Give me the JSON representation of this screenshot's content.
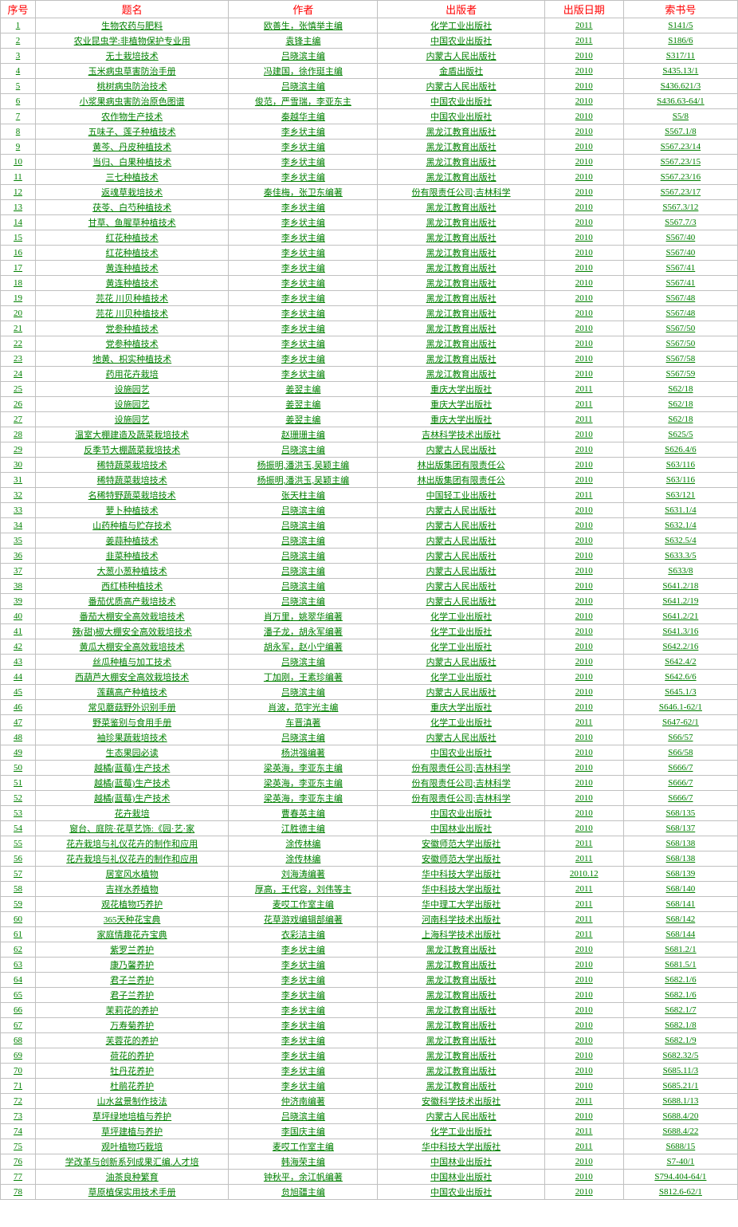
{
  "headers": {
    "seq": "序号",
    "title": "题名",
    "author": "作者",
    "publisher": "出版者",
    "date": "出版日期",
    "code": "索书号"
  },
  "colors": {
    "header_text": "#ff0000",
    "cell_text": "#008000",
    "border": "#c0c0c0",
    "background": "#ffffff"
  },
  "fonts": {
    "header_size": 13,
    "cell_size": 11,
    "family": "SimSun"
  },
  "column_widths": {
    "seq": 40,
    "title": 220,
    "author": 170,
    "publisher": 190,
    "date": 90,
    "code": 130
  },
  "rows": [
    {
      "seq": "1",
      "title": "生物农药与肥料",
      "author": "欧善生，张慎举主编",
      "publisher": "化学工业出版社",
      "date": "2011",
      "code": "S141/5"
    },
    {
      "seq": "2",
      "title": "农业昆虫学:非植物保护专业用",
      "author": "袁锋主编",
      "publisher": "中国农业出版社",
      "date": "2011",
      "code": "S186/6"
    },
    {
      "seq": "3",
      "title": "无土栽培技术",
      "author": "吕晓滨主编",
      "publisher": "内蒙古人民出版社",
      "date": "2010",
      "code": "S317/11"
    },
    {
      "seq": "4",
      "title": "玉米病虫草害防治手册",
      "author": "冯建国，徐作珽主编",
      "publisher": "金盾出版社",
      "date": "2010",
      "code": "S435.13/1"
    },
    {
      "seq": "5",
      "title": "桃树病虫防治技术",
      "author": "吕晓滨主编",
      "publisher": "内蒙古人民出版社",
      "date": "2010",
      "code": "S436.621/3"
    },
    {
      "seq": "6",
      "title": "小浆果病虫害防治原色图谱",
      "author": "俊范，严雪瑞，李亚东主",
      "publisher": "中国农业出版社",
      "date": "2010",
      "code": "S436.63-64/1"
    },
    {
      "seq": "7",
      "title": "农作物生产技术",
      "author": "秦越华主编",
      "publisher": "中国农业出版社",
      "date": "2010",
      "code": "S5/8"
    },
    {
      "seq": "8",
      "title": "五味子、莲子种植技术",
      "author": "李乡状主编",
      "publisher": "黑龙江教育出版社",
      "date": "2010",
      "code": "S567.1/8"
    },
    {
      "seq": "9",
      "title": "黄芩、丹皮种植技术",
      "author": "李乡状主编",
      "publisher": "黑龙江教育出版社",
      "date": "2010",
      "code": "S567.23/14"
    },
    {
      "seq": "10",
      "title": "当归、白果种植技术",
      "author": "李乡状主编",
      "publisher": "黑龙江教育出版社",
      "date": "2010",
      "code": "S567.23/15"
    },
    {
      "seq": "11",
      "title": "三七种植技术",
      "author": "李乡状主编",
      "publisher": "黑龙江教育出版社",
      "date": "2010",
      "code": "S567.23/16"
    },
    {
      "seq": "12",
      "title": "返魂草栽培技术",
      "author": "秦佳梅，张卫东编著",
      "publisher": "份有限责任公司;吉林科学",
      "date": "2010",
      "code": "S567.23/17"
    },
    {
      "seq": "13",
      "title": "茯苓、白芍种植技术",
      "author": "李乡状主编",
      "publisher": "黑龙江教育出版社",
      "date": "2010",
      "code": "S567.3/12"
    },
    {
      "seq": "14",
      "title": "甘草、鱼腥草种植技术",
      "author": "李乡状主编",
      "publisher": "黑龙江教育出版社",
      "date": "2010",
      "code": "S567.7/3"
    },
    {
      "seq": "15",
      "title": "红花种植技术",
      "author": "李乡状主编",
      "publisher": "黑龙江教育出版社",
      "date": "2010",
      "code": "S567/40"
    },
    {
      "seq": "16",
      "title": "红花种植技术",
      "author": "李乡状主编",
      "publisher": "黑龙江教育出版社",
      "date": "2010",
      "code": "S567/40"
    },
    {
      "seq": "17",
      "title": "黄连种植技术",
      "author": "李乡状主编",
      "publisher": "黑龙江教育出版社",
      "date": "2010",
      "code": "S567/41"
    },
    {
      "seq": "18",
      "title": "黄连种植技术",
      "author": "李乡状主编",
      "publisher": "黑龙江教育出版社",
      "date": "2010",
      "code": "S567/41"
    },
    {
      "seq": "19",
      "title": "芫花 川贝种植技术",
      "author": "李乡状主编",
      "publisher": "黑龙江教育出版社",
      "date": "2010",
      "code": "S567/48"
    },
    {
      "seq": "20",
      "title": "芫花 川贝种植技术",
      "author": "李乡状主编",
      "publisher": "黑龙江教育出版社",
      "date": "2010",
      "code": "S567/48"
    },
    {
      "seq": "21",
      "title": "党参种植技术",
      "author": "李乡状主编",
      "publisher": "黑龙江教育出版社",
      "date": "2010",
      "code": "S567/50"
    },
    {
      "seq": "22",
      "title": "党参种植技术",
      "author": "李乡状主编",
      "publisher": "黑龙江教育出版社",
      "date": "2010",
      "code": "S567/50"
    },
    {
      "seq": "23",
      "title": "地黄、枳实种植技术",
      "author": "李乡状主编",
      "publisher": "黑龙江教育出版社",
      "date": "2010",
      "code": "S567/58"
    },
    {
      "seq": "24",
      "title": "药用花卉栽培",
      "author": "李乡状主编",
      "publisher": "黑龙江教育出版社",
      "date": "2010",
      "code": "S567/59"
    },
    {
      "seq": "25",
      "title": "设施园艺",
      "author": "姜翌主编",
      "publisher": "重庆大学出版社",
      "date": "2011",
      "code": "S62/18"
    },
    {
      "seq": "26",
      "title": "设施园艺",
      "author": "姜翌主编",
      "publisher": "重庆大学出版社",
      "date": "2011",
      "code": "S62/18"
    },
    {
      "seq": "27",
      "title": "设施园艺",
      "author": "姜翌主编",
      "publisher": "重庆大学出版社",
      "date": "2011",
      "code": "S62/18"
    },
    {
      "seq": "28",
      "title": "温室大棚建造及蔬菜栽培技术",
      "author": "赵珊珊主编",
      "publisher": "吉林科学技术出版社",
      "date": "2010",
      "code": "S625/5"
    },
    {
      "seq": "29",
      "title": "反季节大棚蔬菜栽培技术",
      "author": "吕晓滨主编",
      "publisher": "内蒙古人民出版社",
      "date": "2010",
      "code": "S626.4/6"
    },
    {
      "seq": "30",
      "title": "稀特蔬菜栽培技术",
      "author": "杨振明,潘洪玉,吴颖主编",
      "publisher": "林出版集团有限责任公",
      "date": "2010",
      "code": "S63/116"
    },
    {
      "seq": "31",
      "title": "稀特蔬菜栽培技术",
      "author": "杨振明,潘洪玉,吴颖主编",
      "publisher": "林出版集团有限责任公",
      "date": "2010",
      "code": "S63/116"
    },
    {
      "seq": "32",
      "title": "名稀特野蔬菜栽培技术",
      "author": "张天柱主编",
      "publisher": "中国轻工业出版社",
      "date": "2011",
      "code": "S63/121"
    },
    {
      "seq": "33",
      "title": "萝卜种植技术",
      "author": "吕晓滨主编",
      "publisher": "内蒙古人民出版社",
      "date": "2010",
      "code": "S631.1/4"
    },
    {
      "seq": "34",
      "title": "山药种植与贮存技术",
      "author": "吕晓滨主编",
      "publisher": "内蒙古人民出版社",
      "date": "2010",
      "code": "S632.1/4"
    },
    {
      "seq": "35",
      "title": "姜蒜种植技术",
      "author": "吕晓滨主编",
      "publisher": "内蒙古人民出版社",
      "date": "2010",
      "code": "S632.5/4"
    },
    {
      "seq": "36",
      "title": "韭菜种植技术",
      "author": "吕晓滨主编",
      "publisher": "内蒙古人民出版社",
      "date": "2010",
      "code": "S633.3/5"
    },
    {
      "seq": "37",
      "title": "大葱小葱种植技术",
      "author": "吕晓滨主编",
      "publisher": "内蒙古人民出版社",
      "date": "2010",
      "code": "S633/8"
    },
    {
      "seq": "38",
      "title": "西红柿种植技术",
      "author": "吕晓滨主编",
      "publisher": "内蒙古人民出版社",
      "date": "2010",
      "code": "S641.2/18"
    },
    {
      "seq": "39",
      "title": "番茄优质高产栽培技术",
      "author": "吕晓滨主编",
      "publisher": "内蒙古人民出版社",
      "date": "2010",
      "code": "S641.2/19"
    },
    {
      "seq": "40",
      "title": "番茄大棚安全高效栽培技术",
      "author": "肖万里，姚翠华编著",
      "publisher": "化学工业出版社",
      "date": "2010",
      "code": "S641.2/21"
    },
    {
      "seq": "41",
      "title": "辣(甜)椒大棚安全高效栽培技术",
      "author": "潘子龙，胡永军编著",
      "publisher": "化学工业出版社",
      "date": "2010",
      "code": "S641.3/16"
    },
    {
      "seq": "42",
      "title": "黄瓜大棚安全高效栽培技术",
      "author": "胡永军，赵小宁编著",
      "publisher": "化学工业出版社",
      "date": "2010",
      "code": "S642.2/16"
    },
    {
      "seq": "43",
      "title": "丝瓜种植与加工技术",
      "author": "吕晓滨主编",
      "publisher": "内蒙古人民出版社",
      "date": "2010",
      "code": "S642.4/2"
    },
    {
      "seq": "44",
      "title": "西葫芦大棚安全高效栽培技术",
      "author": "丁加刚，王素珍编著",
      "publisher": "化学工业出版社",
      "date": "2010",
      "code": "S642.6/6"
    },
    {
      "seq": "45",
      "title": "莲藕高产种植技术",
      "author": "吕晓滨主编",
      "publisher": "内蒙古人民出版社",
      "date": "2010",
      "code": "S645.1/3"
    },
    {
      "seq": "46",
      "title": "常见蘑菇野外识别手册",
      "author": "肖波，范宇光主编",
      "publisher": "重庆大学出版社",
      "date": "2010",
      "code": "S646.1-62/1"
    },
    {
      "seq": "47",
      "title": "野菜鉴别与食用手册",
      "author": "车晋滇著",
      "publisher": "化学工业出版社",
      "date": "2011",
      "code": "S647-62/1"
    },
    {
      "seq": "48",
      "title": "袖珍果蔬栽培技术",
      "author": "吕晓滨主编",
      "publisher": "内蒙古人民出版社",
      "date": "2010",
      "code": "S66/57"
    },
    {
      "seq": "49",
      "title": "生态果园必读",
      "author": "杨洪强编著",
      "publisher": "中国农业出版社",
      "date": "2010",
      "code": "S66/58"
    },
    {
      "seq": "50",
      "title": "越橘(蓝莓)生产技术",
      "author": "梁英海，李亚东主编",
      "publisher": "份有限责任公司;吉林科学",
      "date": "2010",
      "code": "S666/7"
    },
    {
      "seq": "51",
      "title": "越橘(蓝莓)生产技术",
      "author": "梁英海，李亚东主编",
      "publisher": "份有限责任公司;吉林科学",
      "date": "2010",
      "code": "S666/7"
    },
    {
      "seq": "52",
      "title": "越橘(蓝莓)生产技术",
      "author": "梁英海，李亚东主编",
      "publisher": "份有限责任公司;吉林科学",
      "date": "2010",
      "code": "S666/7"
    },
    {
      "seq": "53",
      "title": "花卉栽培",
      "author": "曹春英主编",
      "publisher": "中国农业出版社",
      "date": "2010",
      "code": "S68/135"
    },
    {
      "seq": "54",
      "title": "窗台、庭院·花草艺饰:《园·艺·家",
      "author": "江胜德主编",
      "publisher": "中国林业出版社",
      "date": "2010",
      "code": "S68/137"
    },
    {
      "seq": "55",
      "title": "花卉栽培与礼仪花卉的制作和应用",
      "author": "涂传林编",
      "publisher": "安徽师范大学出版社",
      "date": "2011",
      "code": "S68/138"
    },
    {
      "seq": "56",
      "title": "花卉栽培与礼仪花卉的制作和应用",
      "author": "涂传林编",
      "publisher": "安徽师范大学出版社",
      "date": "2011",
      "code": "S68/138"
    },
    {
      "seq": "57",
      "title": "居室风水植物",
      "author": "刘海涛编著",
      "publisher": "华中科技大学出版社",
      "date": "2010.12",
      "code": "S68/139"
    },
    {
      "seq": "58",
      "title": "吉祥水养植物",
      "author": "厚高，王代容，刘伟等主",
      "publisher": "华中科技大学出版社",
      "date": "2011",
      "code": "S68/140"
    },
    {
      "seq": "59",
      "title": "观花植物巧养护",
      "author": "麦哎工作室主编",
      "publisher": "华中理工大学出版社",
      "date": "2011",
      "code": "S68/141"
    },
    {
      "seq": "60",
      "title": "365天种花宝典",
      "author": "花草游戏编辑部编著",
      "publisher": "河南科学技术出版社",
      "date": "2011",
      "code": "S68/142"
    },
    {
      "seq": "61",
      "title": "家庭情趣花卉宝典",
      "author": "衣彩洁主编",
      "publisher": "上海科学技术出版社",
      "date": "2011",
      "code": "S68/144"
    },
    {
      "seq": "62",
      "title": "紫罗兰养护",
      "author": "李乡状主编",
      "publisher": "黑龙江教育出版社",
      "date": "2010",
      "code": "S681.2/1"
    },
    {
      "seq": "63",
      "title": "康乃馨养护",
      "author": "李乡状主编",
      "publisher": "黑龙江教育出版社",
      "date": "2010",
      "code": "S681.5/1"
    },
    {
      "seq": "64",
      "title": "君子兰养护",
      "author": "李乡状主编",
      "publisher": "黑龙江教育出版社",
      "date": "2010",
      "code": "S682.1/6"
    },
    {
      "seq": "65",
      "title": "君子兰养护",
      "author": "李乡状主编",
      "publisher": "黑龙江教育出版社",
      "date": "2010",
      "code": "S682.1/6"
    },
    {
      "seq": "66",
      "title": "茉莉花的养护",
      "author": "李乡状主编",
      "publisher": "黑龙江教育出版社",
      "date": "2010",
      "code": "S682.1/7"
    },
    {
      "seq": "67",
      "title": "万寿菊养护",
      "author": "李乡状主编",
      "publisher": "黑龙江教育出版社",
      "date": "2010",
      "code": "S682.1/8"
    },
    {
      "seq": "68",
      "title": "芙蓉花的养护",
      "author": "李乡状主编",
      "publisher": "黑龙江教育出版社",
      "date": "2010",
      "code": "S682.1/9"
    },
    {
      "seq": "69",
      "title": "荷花的养护",
      "author": "李乡状主编",
      "publisher": "黑龙江教育出版社",
      "date": "2010",
      "code": "S682.32/5"
    },
    {
      "seq": "70",
      "title": "牡丹花养护",
      "author": "李乡状主编",
      "publisher": "黑龙江教育出版社",
      "date": "2010",
      "code": "S685.11/3"
    },
    {
      "seq": "71",
      "title": "杜鹃花养护",
      "author": "李乡状主编",
      "publisher": "黑龙江教育出版社",
      "date": "2010",
      "code": "S685.21/1"
    },
    {
      "seq": "72",
      "title": "山水盆景制作技法",
      "author": "仲济南编著",
      "publisher": "安徽科学技术出版社",
      "date": "2011",
      "code": "S688.1/13"
    },
    {
      "seq": "73",
      "title": "草坪绿地培植与养护",
      "author": "吕晓滨主编",
      "publisher": "内蒙古人民出版社",
      "date": "2010",
      "code": "S688.4/20"
    },
    {
      "seq": "74",
      "title": "草坪建植与养护",
      "author": "李国庆主编",
      "publisher": "化学工业出版社",
      "date": "2011",
      "code": "S688.4/22"
    },
    {
      "seq": "75",
      "title": "观叶植物巧栽培",
      "author": "麦哎工作室主编",
      "publisher": "华中科技大学出版社",
      "date": "2011",
      "code": "S688/15"
    },
    {
      "seq": "76",
      "title": "学改革与创新系列成果汇编.人才培",
      "author": "韩海荣主编",
      "publisher": "中国林业出版社",
      "date": "2010",
      "code": "S7-40/1"
    },
    {
      "seq": "77",
      "title": "油茶良种繁育",
      "author": "钟秋平，余江帆编著",
      "publisher": "中国林业出版社",
      "date": "2010",
      "code": "S794.404-64/1"
    },
    {
      "seq": "78",
      "title": "草原植保实用技术手册",
      "author": "贠旭疆主编",
      "publisher": "中国农业出版社",
      "date": "2010",
      "code": "S812.6-62/1"
    }
  ]
}
